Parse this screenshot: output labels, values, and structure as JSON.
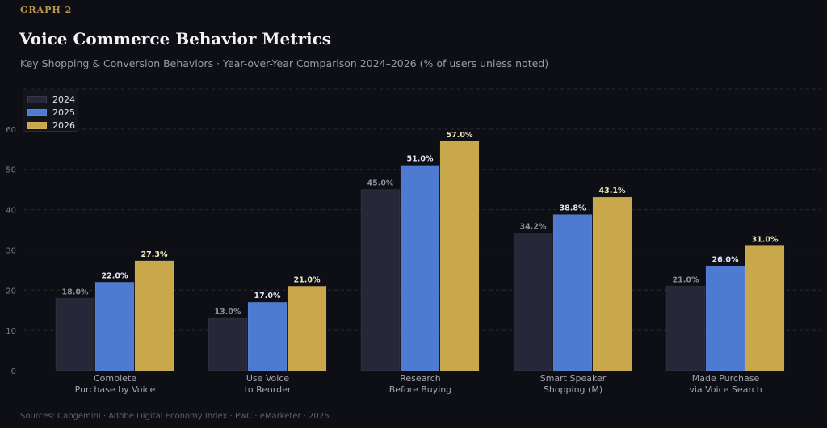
{
  "header": {
    "eyebrow": "GRAPH 2",
    "title": "Voice Commerce Behavior Metrics",
    "subtitle": "Key Shopping & Conversion Behaviors · Year-over-Year Comparison 2024–2026 (% of users unless noted)"
  },
  "footer": {
    "source": "Sources: Capgemini · Adobe Digital Economy Index · PwC · eMarketer · 2026"
  },
  "colors": {
    "2024": "#272739",
    "2025": "#4e7ad2",
    "2026": "#c9a84b",
    "label_2024": "#8e8e9c",
    "label_2025": "#dfe7f8",
    "label_2026": "#f3e6bd"
  },
  "chart_data": {
    "type": "bar",
    "categories": [
      [
        "Complete",
        "Purchase by Voice"
      ],
      [
        "Use Voice",
        "to Reorder"
      ],
      [
        "Research",
        "Before Buying"
      ],
      [
        "Smart Speaker",
        "Shopping (M)"
      ],
      [
        "Made Purchase",
        "via Voice Search"
      ]
    ],
    "series": [
      {
        "name": "2024",
        "values": [
          18.0,
          13.0,
          45.0,
          34.2,
          21.0
        ],
        "labels": [
          "18.0%",
          "13.0%",
          "45.0%",
          "34.2%",
          "21.0%"
        ]
      },
      {
        "name": "2025",
        "values": [
          22.0,
          17.0,
          51.0,
          38.8,
          26.0
        ],
        "labels": [
          "22.0%",
          "17.0%",
          "51.0%",
          "38.8%",
          "26.0%"
        ]
      },
      {
        "name": "2026",
        "values": [
          27.3,
          21.0,
          57.0,
          43.1,
          31.0
        ],
        "labels": [
          "27.3%",
          "21.0%",
          "57.0%",
          "43.1%",
          "31.0%"
        ]
      }
    ],
    "yticks": [
      0,
      10,
      20,
      30,
      40,
      50,
      60
    ],
    "ylim": [
      0,
      70
    ],
    "grid": true,
    "legend_position": "top-left"
  }
}
